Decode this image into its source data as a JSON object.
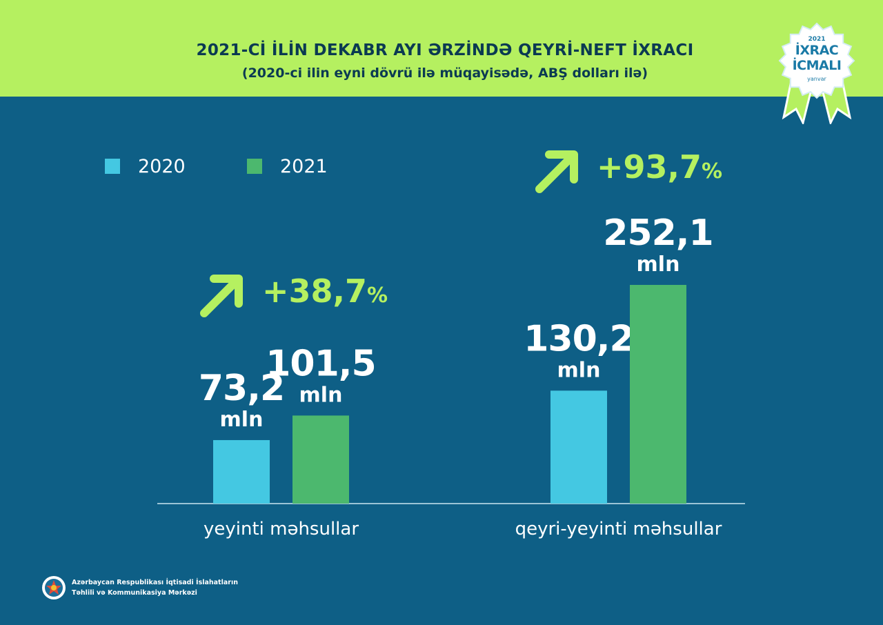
{
  "header": {
    "title": "2021-Cİ İLİN DEKABR AYI ƏRZİNDƏ QEYRİ-NEFT İXRACI",
    "subtitle": "(2020-ci ilin eyni dövrü ilə müqayisədə, ABŞ dolları ilə)"
  },
  "badge": {
    "year": "2021",
    "line1": "İXRAC",
    "line2": "İCMALI",
    "month": "yanvar"
  },
  "colors": {
    "header_bg": "#b5f060",
    "page_bg": "#0e5f86",
    "series_2020": "#44c8e2",
    "series_2021": "#4cb86e",
    "accent": "#b5f060"
  },
  "legend": [
    {
      "label": "2020",
      "color": "#44c8e2"
    },
    {
      "label": "2021",
      "color": "#4cb86e"
    }
  ],
  "chart_data": {
    "type": "bar",
    "categories": [
      "yeyinti məhsullar",
      "qeyri-yeyinti məhsullar"
    ],
    "series": [
      {
        "name": "2020",
        "values": [
          73.2,
          130.2
        ]
      },
      {
        "name": "2021",
        "values": [
          101.5,
          252.1
        ]
      }
    ],
    "value_labels": [
      [
        "73,2",
        "130,2"
      ],
      [
        "101,5",
        "252,1"
      ]
    ],
    "unit_label": "mln",
    "growth_labels": [
      {
        "value": "+38,7",
        "suffix": "%"
      },
      {
        "value": "+93,7",
        "suffix": "%"
      }
    ],
    "ylim": [
      0,
      252.1
    ],
    "legend_position": "top-left",
    "grid": false
  },
  "footer": {
    "org_line1": "Azərbaycan Respublikası İqtisadi İslahatların",
    "org_line2": "Təhlili və Kommunikasiya Mərkəzi"
  }
}
